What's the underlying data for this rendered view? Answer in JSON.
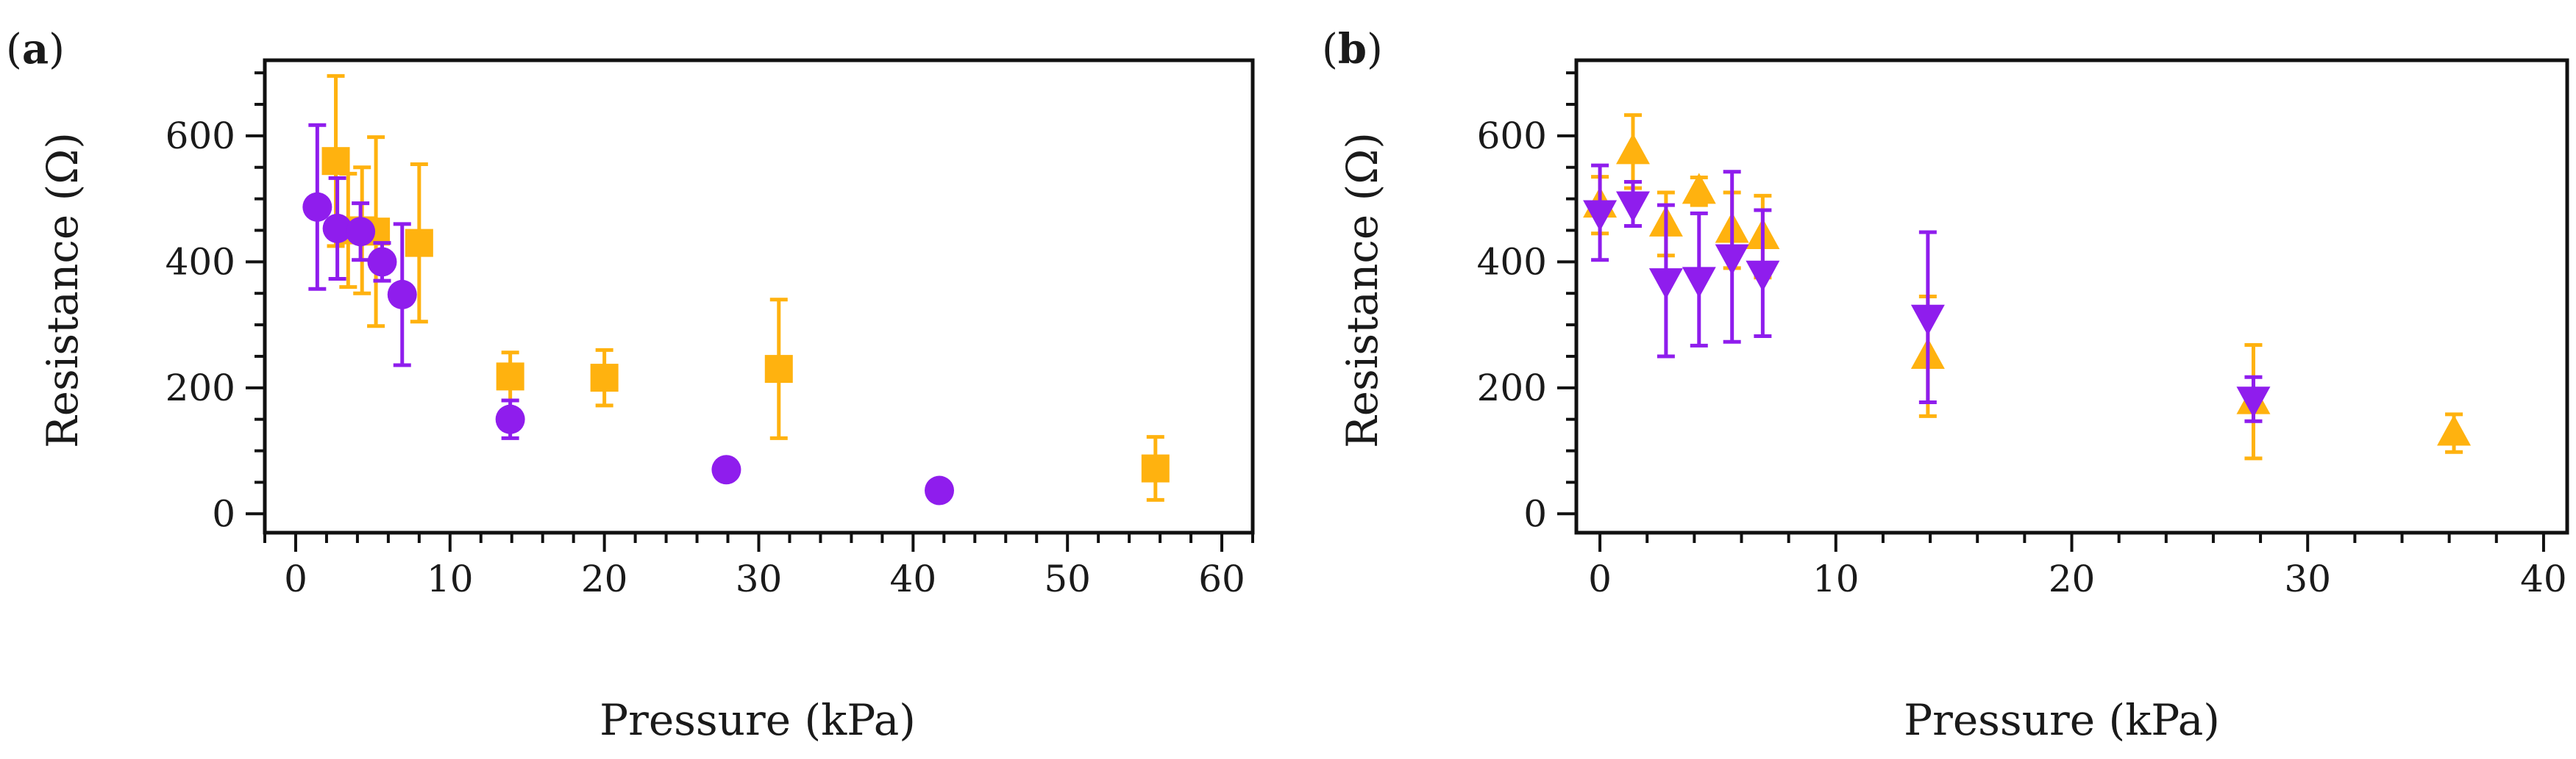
{
  "colors": {
    "orange": "#ffb20f",
    "purple": "#8f1ded"
  },
  "chart_data": [
    {
      "type": "scatter",
      "panel_label": "(a)",
      "panel_letter": "a",
      "xlabel": "Pressure (kPa)",
      "ylabel": "Resistance (Ω)",
      "xlim": [
        -2,
        62
      ],
      "ylim": [
        -30,
        720
      ],
      "xticks": [
        0,
        10,
        20,
        30,
        40,
        50,
        60
      ],
      "yticks": [
        0,
        200,
        400,
        600
      ],
      "x_minor_step": 2,
      "y_minor_step": 50,
      "series": [
        {
          "name": "orange-squares",
          "marker": "square",
          "color": "#ffb20f",
          "points": [
            {
              "x": 2.6,
              "y": 560,
              "err": 135
            },
            {
              "x": 3.4,
              "y": 450,
              "err": 90
            },
            {
              "x": 4.3,
              "y": 450,
              "err": 100
            },
            {
              "x": 5.2,
              "y": 448,
              "err": 150
            },
            {
              "x": 8.0,
              "y": 430,
              "err": 125
            },
            {
              "x": 13.9,
              "y": 218,
              "err": 38
            },
            {
              "x": 20.0,
              "y": 216,
              "err": 44
            },
            {
              "x": 31.3,
              "y": 230,
              "err": 110
            },
            {
              "x": 55.7,
              "y": 72,
              "err": 50
            }
          ]
        },
        {
          "name": "purple-circles",
          "marker": "circle",
          "color": "#8f1ded",
          "points": [
            {
              "x": 1.4,
              "y": 487,
              "err": 130
            },
            {
              "x": 2.7,
              "y": 453,
              "err": 80
            },
            {
              "x": 4.2,
              "y": 448,
              "err": 45
            },
            {
              "x": 5.6,
              "y": 400,
              "err": 30
            },
            {
              "x": 6.9,
              "y": 348,
              "err": 112
            },
            {
              "x": 13.9,
              "y": 150,
              "err": 30
            },
            {
              "x": 27.9,
              "y": 70,
              "err": 10
            },
            {
              "x": 41.7,
              "y": 37,
              "err": 6
            }
          ]
        }
      ]
    },
    {
      "type": "scatter",
      "panel_label": "(b)",
      "panel_letter": "b",
      "xlabel": "Pressure (kPa)",
      "ylabel": "Resistance (Ω)",
      "xlim": [
        -1,
        41
      ],
      "ylim": [
        -30,
        720
      ],
      "xticks": [
        0,
        10,
        20,
        30,
        40
      ],
      "yticks": [
        0,
        200,
        400,
        600
      ],
      "x_minor_step": 2,
      "y_minor_step": 50,
      "series": [
        {
          "name": "orange-up-triangles",
          "marker": "triangle-up",
          "color": "#ffb20f",
          "points": [
            {
              "x": 0.0,
              "y": 490,
              "err": 45
            },
            {
              "x": 1.4,
              "y": 575,
              "err": 58
            },
            {
              "x": 2.8,
              "y": 460,
              "err": 50
            },
            {
              "x": 4.2,
              "y": 512,
              "err": 22
            },
            {
              "x": 5.6,
              "y": 450,
              "err": 60
            },
            {
              "x": 6.9,
              "y": 440,
              "err": 65
            },
            {
              "x": 13.9,
              "y": 250,
              "err": 95
            },
            {
              "x": 27.7,
              "y": 178,
              "err": 90
            },
            {
              "x": 36.2,
              "y": 128,
              "err": 30
            }
          ]
        },
        {
          "name": "purple-down-triangles",
          "marker": "triangle-down",
          "color": "#8f1ded",
          "points": [
            {
              "x": 0.0,
              "y": 478,
              "err": 75
            },
            {
              "x": 1.4,
              "y": 492,
              "err": 35
            },
            {
              "x": 2.8,
              "y": 370,
              "err": 120
            },
            {
              "x": 4.2,
              "y": 372,
              "err": 105
            },
            {
              "x": 5.6,
              "y": 408,
              "err": 135
            },
            {
              "x": 6.9,
              "y": 382,
              "err": 100
            },
            {
              "x": 13.9,
              "y": 312,
              "err": 135
            },
            {
              "x": 27.7,
              "y": 182,
              "err": 35
            }
          ]
        }
      ]
    }
  ]
}
